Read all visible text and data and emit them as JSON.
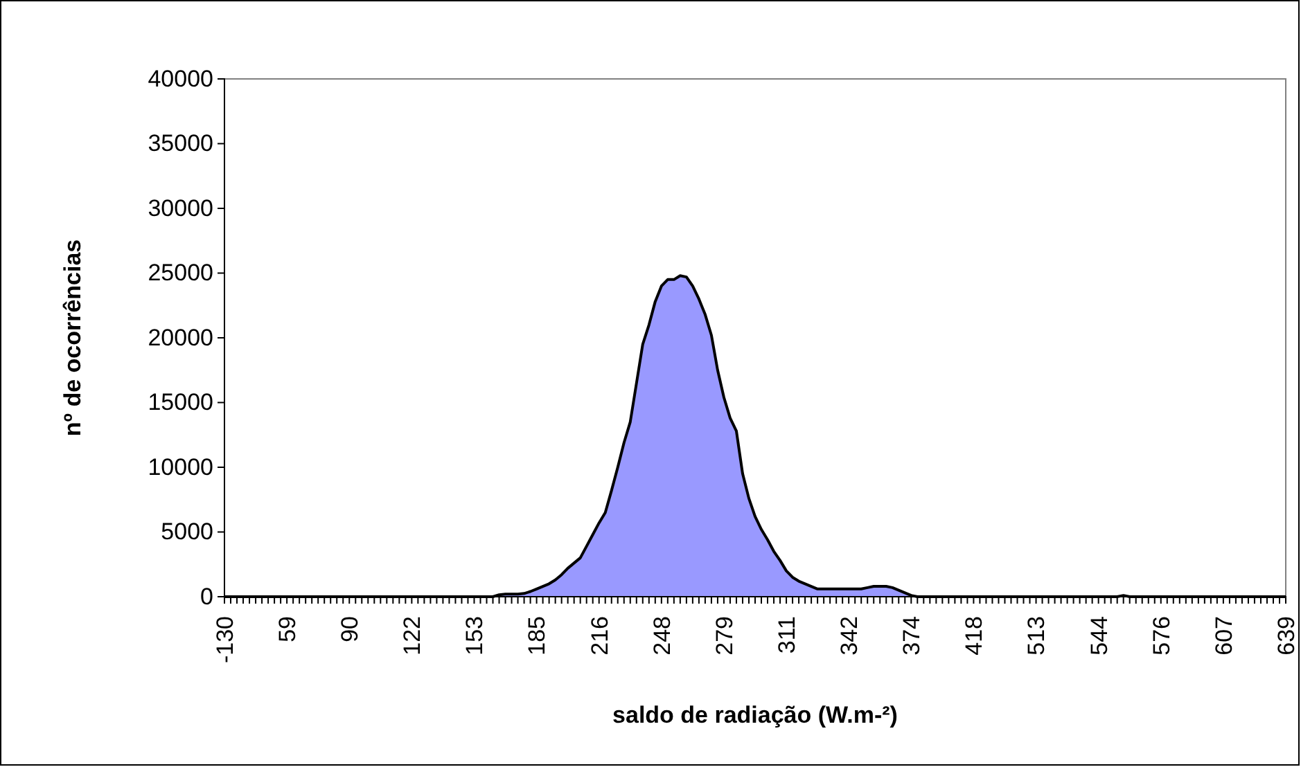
{
  "chart_data": {
    "type": "area",
    "xlabel": "saldo de radiação (W.m-²)",
    "ylabel": "nº de ocorrências",
    "categories": [
      "-130",
      null,
      null,
      null,
      null,
      null,
      null,
      null,
      null,
      null,
      "59",
      null,
      null,
      null,
      null,
      null,
      null,
      null,
      null,
      null,
      "90",
      null,
      null,
      null,
      null,
      null,
      null,
      null,
      null,
      null,
      "122",
      null,
      null,
      null,
      null,
      null,
      null,
      null,
      null,
      null,
      "153",
      null,
      null,
      null,
      null,
      null,
      null,
      null,
      null,
      null,
      "185",
      null,
      null,
      null,
      null,
      null,
      null,
      null,
      null,
      null,
      "216",
      null,
      null,
      null,
      null,
      null,
      null,
      null,
      null,
      null,
      "248",
      null,
      null,
      null,
      null,
      null,
      null,
      null,
      null,
      null,
      "279",
      null,
      null,
      null,
      null,
      null,
      null,
      null,
      null,
      null,
      "311",
      null,
      null,
      null,
      null,
      null,
      null,
      null,
      null,
      null,
      "342",
      null,
      null,
      null,
      null,
      null,
      null,
      null,
      null,
      null,
      "374",
      null,
      null,
      null,
      null,
      null,
      null,
      null,
      null,
      null,
      "418",
      null,
      null,
      null,
      null,
      null,
      null,
      null,
      null,
      null,
      "513",
      null,
      null,
      null,
      null,
      null,
      null,
      null,
      null,
      null,
      "544",
      null,
      null,
      null,
      null,
      null,
      null,
      null,
      null,
      null,
      "576",
      null,
      null,
      null,
      null,
      null,
      null,
      null,
      null,
      null,
      "607",
      null,
      null,
      null,
      null,
      null,
      null,
      null,
      null,
      null,
      "639"
    ],
    "values": [
      0,
      0,
      0,
      0,
      0,
      0,
      0,
      0,
      0,
      0,
      0,
      0,
      0,
      0,
      0,
      0,
      0,
      0,
      0,
      0,
      0,
      0,
      0,
      0,
      0,
      0,
      0,
      0,
      0,
      0,
      0,
      0,
      0,
      0,
      0,
      0,
      0,
      0,
      0,
      0,
      0,
      0,
      0,
      0,
      150,
      200,
      200,
      200,
      250,
      400,
      600,
      800,
      1000,
      1300,
      1700,
      2200,
      2600,
      3000,
      3900,
      4800,
      5700,
      6500,
      8200,
      10000,
      11900,
      13500,
      16500,
      19500,
      21000,
      22800,
      24000,
      24500,
      24500,
      24800,
      24700,
      24000,
      23000,
      21800,
      20200,
      17500,
      15400,
      13800,
      12800,
      9500,
      7600,
      6200,
      5200,
      4400,
      3500,
      2800,
      2000,
      1500,
      1200,
      1000,
      800,
      600,
      600,
      600,
      600,
      600,
      600,
      600,
      600,
      700,
      800,
      800,
      800,
      700,
      500,
      300,
      100,
      0,
      0,
      0,
      0,
      0,
      0,
      0,
      0,
      0,
      0,
      0,
      0,
      0,
      0,
      0,
      0,
      0,
      0,
      0,
      0,
      0,
      0,
      0,
      0,
      0,
      0,
      0,
      0,
      0,
      0,
      0,
      0,
      0,
      100,
      0,
      0,
      0,
      0,
      0,
      0,
      0,
      0,
      0,
      0,
      0,
      0,
      0,
      0,
      0,
      0,
      0,
      0,
      0,
      0,
      0,
      0,
      0,
      0,
      0,
      0
    ],
    "color": "#9999ff",
    "ylim": [
      0,
      40000
    ],
    "yticks": [
      0,
      5000,
      10000,
      15000,
      20000,
      25000,
      30000,
      35000,
      40000
    ]
  }
}
